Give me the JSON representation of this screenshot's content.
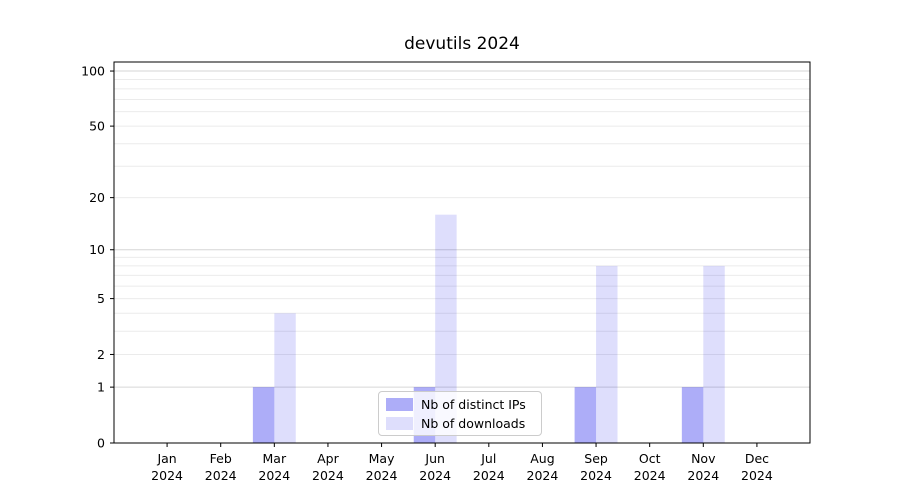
{
  "chart_data": {
    "type": "bar",
    "title": "devutils 2024",
    "categories": [
      "Jan",
      "Feb",
      "Mar",
      "Apr",
      "May",
      "Jun",
      "Jul",
      "Aug",
      "Sep",
      "Oct",
      "Nov",
      "Dec"
    ],
    "category_year": "2024",
    "series": [
      {
        "name": "Nb of distinct IPs",
        "color": "rgba(8,10,235,0.335)",
        "color_hex_on_white": "#acadf8",
        "values": [
          0,
          0,
          1,
          0,
          0,
          1,
          0,
          0,
          1,
          0,
          1,
          0
        ]
      },
      {
        "name": "Nb of downloads",
        "color": "rgba(8,10,235,0.135)",
        "color_hex_on_white": "#dcddfa",
        "values": [
          0,
          0,
          4,
          0,
          0,
          16,
          0,
          0,
          8,
          0,
          8,
          0
        ]
      }
    ],
    "xlabel": "",
    "ylabel": "",
    "yscale": "log1p",
    "ylim": [
      0,
      112
    ],
    "ytick_labels": [
      "0",
      "1",
      "2",
      "5",
      "10",
      "20",
      "50",
      "100"
    ],
    "ytick_values": [
      0,
      1,
      2,
      5,
      10,
      20,
      50,
      100
    ],
    "major_gridlines": [
      1,
      10,
      100
    ],
    "minor_gridlines": [
      2,
      3,
      4,
      5,
      6,
      7,
      8,
      9,
      20,
      30,
      40,
      50,
      60,
      70,
      80,
      90
    ],
    "grid": "horizontal",
    "legend_position": "lower center"
  },
  "colors": {
    "background": "#ffffff",
    "axis": "#000000",
    "grid_major": "#d6d6d6",
    "grid_minor": "#ebebeb",
    "tick_text": "#000000",
    "legend_border": "#cccccc"
  }
}
